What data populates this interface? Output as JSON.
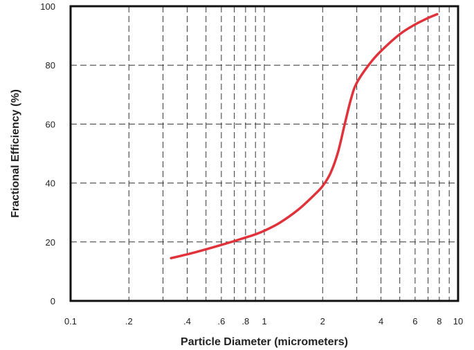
{
  "chart_data": {
    "type": "line",
    "xlabel": "Particle Diameter (micrometers)",
    "ylabel": "Fractional Efficiency (%)",
    "x_scale": "log",
    "xlim": [
      0.1,
      10
    ],
    "ylim": [
      0,
      100
    ],
    "grid": true,
    "x_ticks": [
      {
        "value": 0.1,
        "label": "0.1"
      },
      {
        "value": 0.2,
        "label": ".2"
      },
      {
        "value": 0.4,
        "label": ".4"
      },
      {
        "value": 0.6,
        "label": ".6"
      },
      {
        "value": 0.8,
        "label": ".8"
      },
      {
        "value": 1,
        "label": "1"
      },
      {
        "value": 2,
        "label": "2"
      },
      {
        "value": 4,
        "label": "4"
      },
      {
        "value": 6,
        "label": "6"
      },
      {
        "value": 8,
        "label": "8"
      },
      {
        "value": 10,
        "label": "10"
      }
    ],
    "x_gridlines": [
      0.2,
      0.3,
      0.4,
      0.5,
      0.6,
      0.7,
      0.8,
      0.9,
      1,
      2,
      3,
      4,
      5,
      6,
      7,
      8,
      9
    ],
    "y_ticks": [
      {
        "value": 0,
        "label": "0"
      },
      {
        "value": 20,
        "label": "20"
      },
      {
        "value": 40,
        "label": "40"
      },
      {
        "value": 60,
        "label": "60"
      },
      {
        "value": 80,
        "label": "80"
      },
      {
        "value": 100,
        "label": "100"
      }
    ],
    "y_gridlines": [
      20,
      40,
      60,
      80
    ],
    "series": [
      {
        "color": "#e0323a",
        "x": [
          0.33,
          0.4,
          0.5,
          0.6,
          0.7,
          0.8,
          0.9,
          1.0,
          1.2,
          1.5,
          1.8,
          2.0,
          2.2,
          2.4,
          2.6,
          2.8,
          3.0,
          3.5,
          4.0,
          5.0,
          6.0,
          7.0,
          7.8
        ],
        "y": [
          14.5,
          15.8,
          17.5,
          19.0,
          20.3,
          21.5,
          22.6,
          23.8,
          26.5,
          31.0,
          35.8,
          39.0,
          43.5,
          50.5,
          60.0,
          68.5,
          74.0,
          80.5,
          84.8,
          90.5,
          93.8,
          96.0,
          97.3
        ]
      }
    ]
  }
}
